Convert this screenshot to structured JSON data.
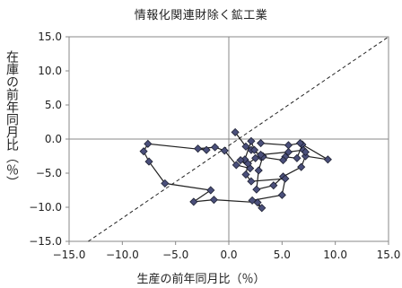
{
  "chart_data": {
    "type": "scatter",
    "title": "情報化関連財除く鉱工業",
    "xlabel": "生産の前年同月比（％）",
    "ylabel": "在庫の前年同月比（％）",
    "xlim": [
      -15.0,
      15.0
    ],
    "ylim": [
      -15.0,
      15.0
    ],
    "xticks": [
      "−15.0",
      "−10.0",
      "−5.0",
      "0.0",
      "5.0",
      "10.0",
      "15.0"
    ],
    "yticks": [
      "15.0",
      "10.0",
      "5.0",
      "0.0",
      "−5.0",
      "−10.0",
      "−15.0"
    ],
    "grid": false,
    "reference_line": "y = x (dashed)",
    "marker": "diamond",
    "series": [
      {
        "x": [
          0.6,
          1.6,
          2.1,
          3.2,
          2.8,
          2.6,
          4.2,
          5.1,
          6.8,
          7.2,
          9.3,
          6.9,
          6.4,
          5.3,
          5.1,
          3.0,
          2.4,
          2.1,
          1.5,
          1.1,
          2.0,
          0.7,
          -0.4,
          -1.3,
          -2.9,
          -2.1,
          -7.6,
          -8.0,
          -7.5,
          -6.0,
          -1.7,
          -3.3,
          -1.4,
          2.7,
          3.1,
          2.2,
          5.0,
          5.3,
          2.1,
          1.6,
          1.8,
          2.5,
          3.2,
          3.0,
          5.6,
          7.0,
          7.2,
          6.7,
          5.6,
          3.0
        ],
        "y": [
          1.0,
          -1.1,
          -1.6,
          -2.5,
          -4.6,
          -7.4,
          -6.8,
          -5.5,
          -4.1,
          -2.5,
          -3.0,
          -0.8,
          -2.8,
          -2.6,
          -3.1,
          -2.6,
          -1.6,
          -0.3,
          -3.0,
          -3.1,
          -4.3,
          -3.8,
          -1.7,
          -1.2,
          -1.4,
          -1.6,
          -0.7,
          -1.8,
          -3.3,
          -6.5,
          -7.5,
          -9.2,
          -8.9,
          -9.3,
          -10.1,
          -9.0,
          -8.2,
          -5.8,
          -6.2,
          -5.2,
          -3.6,
          -2.8,
          -2.6,
          -2.3,
          -1.9,
          -1.6,
          -1.9,
          -0.6,
          -0.9,
          -0.6
        ]
      }
    ]
  }
}
